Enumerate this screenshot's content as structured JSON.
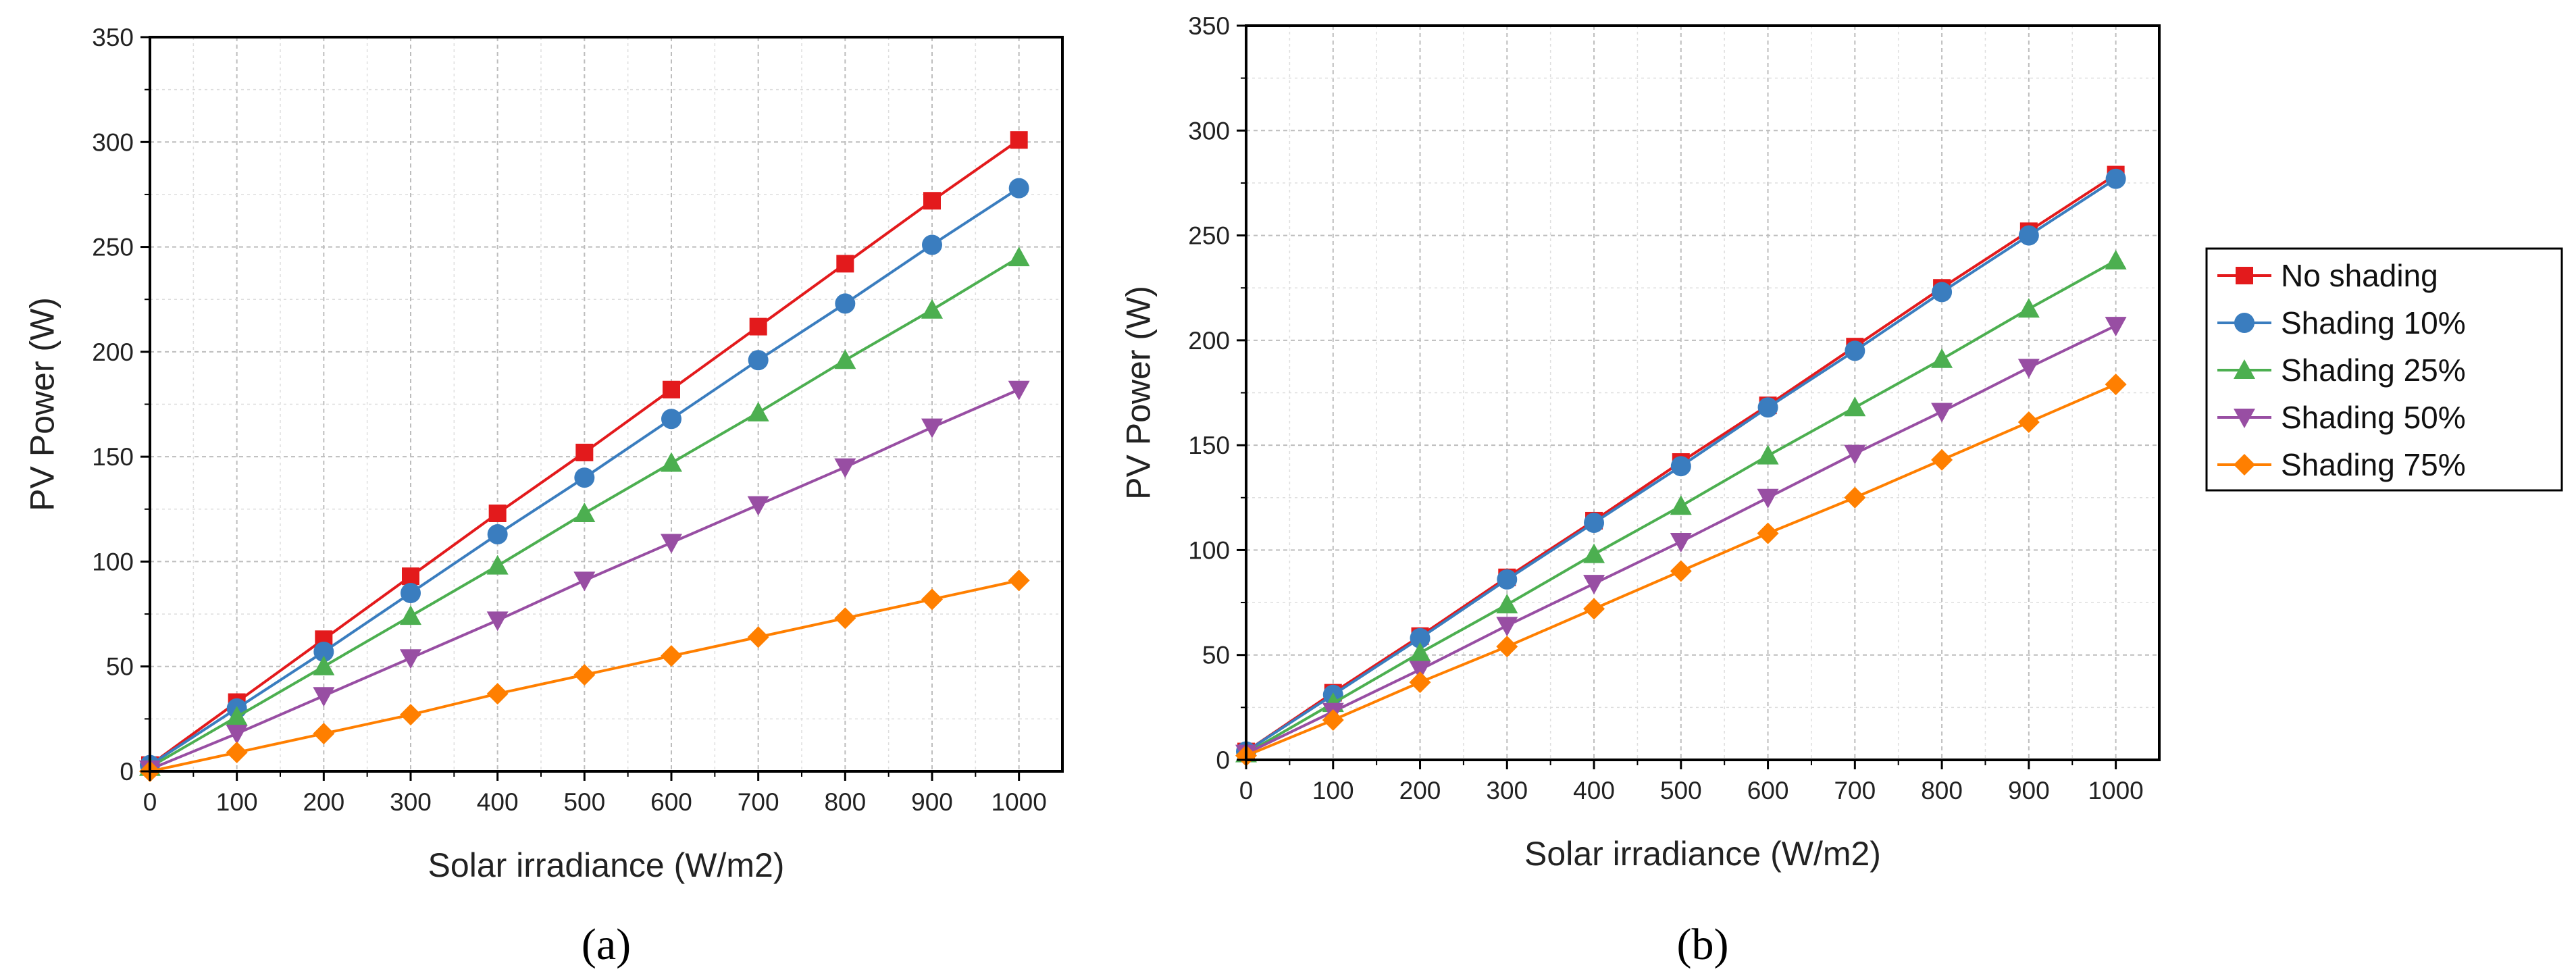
{
  "colors": {
    "no_shading": "#e31a1c",
    "shading_10": "#3a7dbf",
    "shading_25": "#4caf50",
    "shading_50": "#984ea3",
    "shading_75": "#ff7f00"
  },
  "legend": {
    "placement": "right",
    "items": [
      "No shading",
      "Shading 10%",
      "Shading 25%",
      "Shading 50%",
      "Shading 75%"
    ]
  },
  "chart_data": [
    {
      "type": "line",
      "panel_label": "(a)",
      "xlabel": "Solar irradiance (W/m2)",
      "ylabel": "PV Power (W)",
      "xlim": [
        0,
        1050
      ],
      "ylim": [
        0,
        350
      ],
      "xticks": [
        0,
        100,
        200,
        300,
        400,
        500,
        600,
        700,
        800,
        900,
        1000
      ],
      "yticks": [
        0,
        50,
        100,
        150,
        200,
        250,
        300,
        350
      ],
      "grid": true,
      "x": [
        0,
        100,
        200,
        300,
        400,
        500,
        600,
        700,
        800,
        900,
        1000
      ],
      "series": [
        {
          "name": "No shading",
          "marker": "square",
          "values": [
            3,
            33,
            63,
            93,
            123,
            152,
            182,
            212,
            242,
            272,
            301
          ]
        },
        {
          "name": "Shading 10%",
          "marker": "circle",
          "values": [
            3,
            30,
            57,
            85,
            113,
            140,
            168,
            196,
            223,
            251,
            278
          ]
        },
        {
          "name": "Shading 25%",
          "marker": "triangle-up",
          "values": [
            2,
            26,
            50,
            74,
            98,
            123,
            147,
            171,
            196,
            220,
            245
          ]
        },
        {
          "name": "Shading 50%",
          "marker": "triangle-down",
          "values": [
            1,
            18,
            36,
            54,
            72,
            91,
            109,
            127,
            145,
            164,
            182
          ]
        },
        {
          "name": "Shading 75%",
          "marker": "diamond",
          "values": [
            0,
            9,
            18,
            27,
            37,
            46,
            55,
            64,
            73,
            82,
            91
          ]
        }
      ]
    },
    {
      "type": "line",
      "panel_label": "(b)",
      "xlabel": "Solar irradiance (W/m2)",
      "ylabel": "PV Power (W)",
      "xlim": [
        0,
        1050
      ],
      "ylim": [
        0,
        350
      ],
      "xticks": [
        0,
        100,
        200,
        300,
        400,
        500,
        600,
        700,
        800,
        900,
        1000
      ],
      "yticks": [
        0,
        50,
        100,
        150,
        200,
        250,
        300,
        350
      ],
      "grid": true,
      "x": [
        0,
        100,
        200,
        300,
        400,
        500,
        600,
        700,
        800,
        900,
        1000
      ],
      "series": [
        {
          "name": "No shading",
          "marker": "square",
          "values": [
            4,
            32,
            59,
            87,
            114,
            142,
            169,
            197,
            225,
            252,
            279
          ]
        },
        {
          "name": "Shading 10%",
          "marker": "circle",
          "values": [
            4,
            31,
            58,
            86,
            113,
            140,
            168,
            195,
            223,
            250,
            277
          ]
        },
        {
          "name": "Shading 25%",
          "marker": "triangle-up",
          "values": [
            3,
            27,
            51,
            74,
            98,
            121,
            145,
            168,
            191,
            215,
            238
          ]
        },
        {
          "name": "Shading 50%",
          "marker": "triangle-down",
          "values": [
            3,
            23,
            43,
            64,
            84,
            104,
            125,
            146,
            166,
            187,
            207
          ]
        },
        {
          "name": "Shading 75%",
          "marker": "diamond",
          "values": [
            2,
            19,
            37,
            54,
            72,
            90,
            108,
            125,
            143,
            161,
            179
          ]
        }
      ]
    }
  ]
}
